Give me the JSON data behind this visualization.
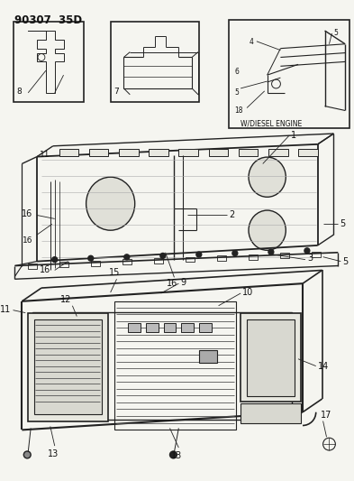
{
  "title": "90307  35D",
  "bg_color": "#f5f5f0",
  "line_color": "#222222",
  "text_color": "#111111",
  "figsize": [
    3.93,
    5.33
  ],
  "dpi": 100
}
